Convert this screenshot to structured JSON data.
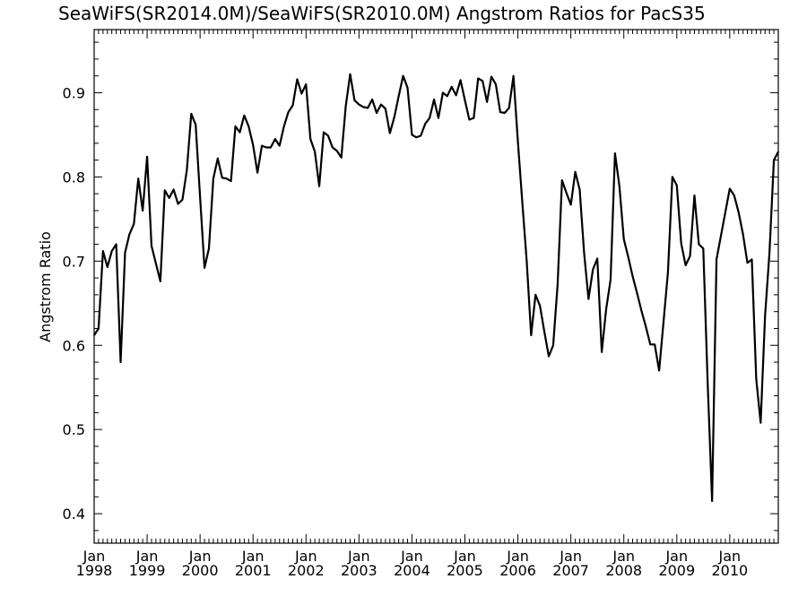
{
  "chart_data": {
    "type": "line",
    "title": "SeaWiFS(SR2014.0M)/SeaWiFS(SR2010.0M)  Angstrom Ratios for PacS35",
    "xlabel": "",
    "ylabel": "Angstrom Ratio",
    "xlim": [
      "1998-01",
      "2010-12"
    ],
    "ylim": [
      0.365,
      0.975
    ],
    "x_ticks": [
      {
        "month": "Jan",
        "year": "1998",
        "date": "1998-01"
      },
      {
        "month": "Jan",
        "year": "1999",
        "date": "1999-01"
      },
      {
        "month": "Jan",
        "year": "2000",
        "date": "2000-01"
      },
      {
        "month": "Jan",
        "year": "2001",
        "date": "2001-01"
      },
      {
        "month": "Jan",
        "year": "2002",
        "date": "2002-01"
      },
      {
        "month": "Jan",
        "year": "2003",
        "date": "2003-01"
      },
      {
        "month": "Jan",
        "year": "2004",
        "date": "2004-01"
      },
      {
        "month": "Jan",
        "year": "2005",
        "date": "2005-01"
      },
      {
        "month": "Jan",
        "year": "2006",
        "date": "2006-01"
      },
      {
        "month": "Jan",
        "year": "2007",
        "date": "2007-01"
      },
      {
        "month": "Jan",
        "year": "2008",
        "date": "2008-01"
      },
      {
        "month": "Jan",
        "year": "2009",
        "date": "2009-01"
      },
      {
        "month": "Jan",
        "year": "2010",
        "date": "2010-01"
      }
    ],
    "y_ticks": [
      "0.4",
      "0.5",
      "0.6",
      "0.7",
      "0.8",
      "0.9"
    ],
    "grid": false,
    "series": [
      {
        "color": "#000000",
        "x": [
          "1998-01",
          "1998-02",
          "1998-03",
          "1998-04",
          "1998-05",
          "1998-06",
          "1998-07",
          "1998-08",
          "1998-09",
          "1998-10",
          "1998-11",
          "1998-12",
          "1999-01",
          "1999-02",
          "1999-03",
          "1999-04",
          "1999-05",
          "1999-06",
          "1999-07",
          "1999-08",
          "1999-09",
          "1999-10",
          "1999-11",
          "1999-12",
          "2000-01",
          "2000-02",
          "2000-03",
          "2000-04",
          "2000-05",
          "2000-06",
          "2000-07",
          "2000-08",
          "2000-09",
          "2000-10",
          "2000-11",
          "2000-12",
          "2001-01",
          "2001-02",
          "2001-03",
          "2001-04",
          "2001-05",
          "2001-06",
          "2001-07",
          "2001-08",
          "2001-09",
          "2001-10",
          "2001-11",
          "2001-12",
          "2002-01",
          "2002-02",
          "2002-03",
          "2002-04",
          "2002-05",
          "2002-06",
          "2002-07",
          "2002-08",
          "2002-09",
          "2002-10",
          "2002-11",
          "2002-12",
          "2003-01",
          "2003-02",
          "2003-03",
          "2003-04",
          "2003-05",
          "2003-06",
          "2003-07",
          "2003-08",
          "2003-09",
          "2003-10",
          "2003-11",
          "2003-12",
          "2004-01",
          "2004-02",
          "2004-03",
          "2004-04",
          "2004-05",
          "2004-06",
          "2004-07",
          "2004-08",
          "2004-09",
          "2004-10",
          "2004-11",
          "2004-12",
          "2005-01",
          "2005-02",
          "2005-03",
          "2005-04",
          "2005-05",
          "2005-06",
          "2005-07",
          "2005-08",
          "2005-09",
          "2005-10",
          "2005-11",
          "2005-12",
          "2006-01",
          "2006-02",
          "2006-03",
          "2006-04",
          "2006-05",
          "2006-06",
          "2006-07",
          "2006-08",
          "2006-09",
          "2006-10",
          "2006-11",
          "2006-12",
          "2007-01",
          "2007-02",
          "2007-03",
          "2007-04",
          "2007-05",
          "2007-06",
          "2007-07",
          "2007-08",
          "2007-09",
          "2007-10",
          "2007-11",
          "2007-12",
          "2008-01",
          "2008-02",
          "2008-03",
          "2008-04",
          "2008-05",
          "2008-06",
          "2008-07",
          "2008-08",
          "2008-09",
          "2008-10",
          "2008-11",
          "2008-12",
          "2009-01",
          "2009-02",
          "2009-03",
          "2009-04",
          "2009-05",
          "2009-06",
          "2009-07",
          "2009-08",
          "2009-09",
          "2009-10",
          "2009-11",
          "2009-12",
          "2010-01",
          "2010-02",
          "2010-03",
          "2010-04",
          "2010-05",
          "2010-06",
          "2010-07",
          "2010-08",
          "2010-09",
          "2010-10",
          "2010-11",
          "2010-12"
        ],
        "values": [
          0.612,
          0.62,
          0.712,
          0.693,
          0.712,
          0.72,
          0.58,
          0.71,
          0.732,
          0.744,
          0.798,
          0.76,
          0.824,
          0.718,
          0.697,
          0.676,
          0.784,
          0.775,
          0.785,
          0.768,
          0.773,
          0.808,
          0.875,
          0.862,
          0.776,
          0.692,
          0.715,
          0.798,
          0.822,
          0.799,
          0.798,
          0.795,
          0.86,
          0.853,
          0.873,
          0.86,
          0.838,
          0.805,
          0.837,
          0.835,
          0.835,
          0.845,
          0.837,
          0.86,
          0.877,
          0.885,
          0.916,
          0.899,
          0.91,
          0.845,
          0.83,
          0.789,
          0.853,
          0.849,
          0.835,
          0.831,
          0.823,
          0.884,
          0.922,
          0.891,
          0.886,
          0.883,
          0.882,
          0.892,
          0.876,
          0.886,
          0.881,
          0.852,
          0.871,
          0.896,
          0.92,
          0.906,
          0.85,
          0.847,
          0.849,
          0.863,
          0.87,
          0.892,
          0.87,
          0.9,
          0.896,
          0.907,
          0.897,
          0.915,
          0.891,
          0.868,
          0.87,
          0.917,
          0.914,
          0.889,
          0.919,
          0.91,
          0.877,
          0.876,
          0.882,
          0.92,
          0.842,
          0.77,
          0.7,
          0.612,
          0.66,
          0.647,
          0.616,
          0.587,
          0.6,
          0.672,
          0.796,
          0.781,
          0.767,
          0.806,
          0.785,
          0.71,
          0.655,
          0.69,
          0.703,
          0.592,
          0.643,
          0.678,
          0.828,
          0.789,
          0.726,
          0.705,
          0.682,
          0.662,
          0.641,
          0.622,
          0.601,
          0.601,
          0.57,
          0.628,
          0.687,
          0.8,
          0.79,
          0.721,
          0.695,
          0.706,
          0.778,
          0.72,
          0.715,
          0.555,
          0.415,
          0.702,
          0.73,
          0.758,
          0.786,
          0.778,
          0.758,
          0.732,
          0.698,
          0.702,
          0.56,
          0.508,
          0.635,
          0.71,
          0.82,
          0.83
        ]
      }
    ]
  }
}
